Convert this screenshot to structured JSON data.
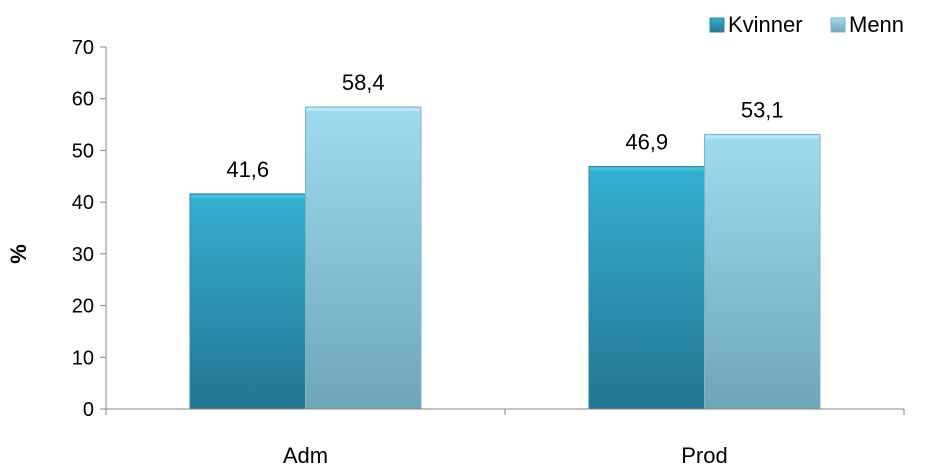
{
  "chart_data": {
    "type": "bar",
    "title": "",
    "xlabel": "",
    "ylabel": "%",
    "ylim": [
      0,
      70
    ],
    "yticks": [
      0,
      10,
      20,
      30,
      40,
      50,
      60,
      70
    ],
    "grid": false,
    "legend_position": "top-right",
    "categories": [
      "Adm",
      "Prod"
    ],
    "series": [
      {
        "name": "Kvinner",
        "values": [
          41.6,
          46.9
        ],
        "labels": [
          "41,6",
          "46,9"
        ],
        "color": "#2e9fc0"
      },
      {
        "name": "Menn",
        "values": [
          58.4,
          53.1
        ],
        "labels": [
          "58,4",
          "53,1"
        ],
        "color": "#8fcfe4"
      }
    ]
  }
}
